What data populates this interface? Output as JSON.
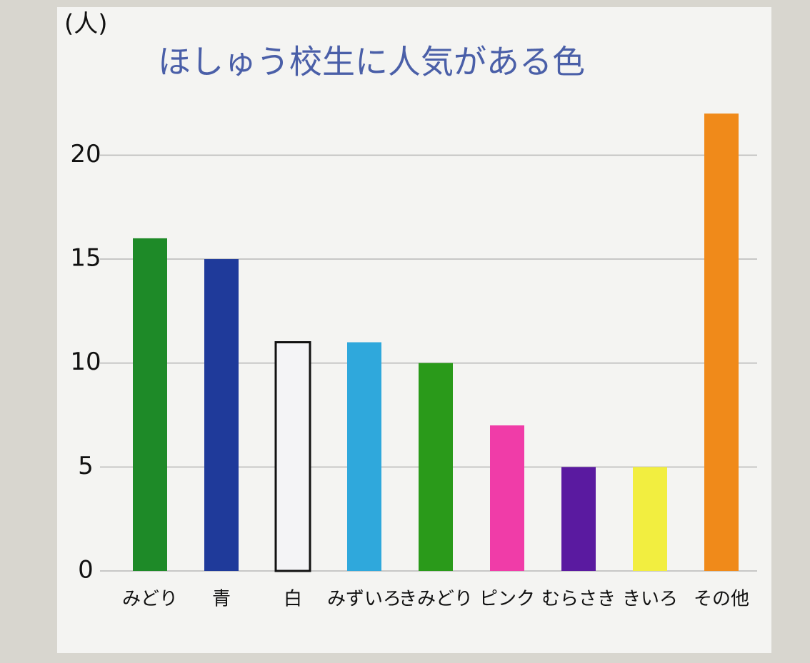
{
  "chart_data": {
    "type": "bar",
    "title": "ほしゅう校生に人気がある色",
    "y_label": "(人)",
    "categories": [
      "みどり",
      "青",
      "白",
      "みずいろ",
      "きみどり",
      "ピンク",
      "むらさき",
      "きいろ",
      "その他"
    ],
    "values": [
      16,
      15,
      11,
      11,
      10,
      7,
      5,
      5,
      22
    ],
    "colors": [
      "#1e8a28",
      "#1f3a9a",
      "#f4f4f6",
      "#2fa8dc",
      "#2a9a1a",
      "#f03ca8",
      "#5a1aa0",
      "#f2ee40",
      "#f08a1a"
    ],
    "ylim": [
      0,
      23
    ],
    "yticks": [
      0,
      5,
      10,
      15,
      20
    ],
    "grid": true
  }
}
